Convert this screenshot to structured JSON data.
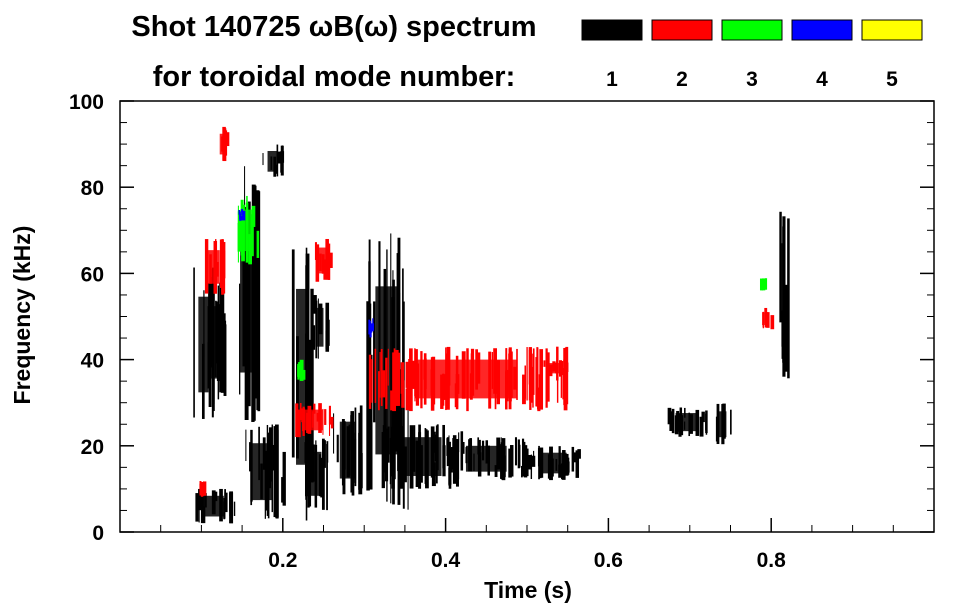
{
  "chart_data": {
    "type": "heatmap",
    "title_line1": "Shot 140725 ωB(ω) spectrum",
    "title_line2": "for toroidal mode number:",
    "xlabel": "Time (s)",
    "ylabel": "Frequency (kHz)",
    "xlim": [
      0.0,
      1.0
    ],
    "ylim": [
      0,
      100
    ],
    "x_ticks": [
      0.2,
      0.4,
      0.6,
      0.8
    ],
    "x_tick_labels": [
      "0.2",
      "0.4",
      "0.6",
      "0.8"
    ],
    "y_ticks": [
      0,
      20,
      40,
      60,
      80,
      100
    ],
    "y_tick_labels": [
      "0",
      "20",
      "40",
      "60",
      "80",
      "100"
    ],
    "grid": false,
    "legend_position": "top-right",
    "series": [
      {
        "name": "1",
        "color": "#000000",
        "regions": [
          {
            "t": [
              0.09,
              0.115
            ],
            "f": [
              25,
              62
            ]
          },
          {
            "t": [
              0.1,
              0.13
            ],
            "f": [
              30,
              58
            ]
          },
          {
            "t": [
              0.09,
              0.14
            ],
            "f": [
              2,
              10
            ]
          },
          {
            "t": [
              0.15,
              0.2
            ],
            "f": [
              3,
              25
            ]
          },
          {
            "t": [
              0.14,
              0.17
            ],
            "f": [
              25,
              85
            ]
          },
          {
            "t": [
              0.175,
              0.2
            ],
            "f": [
              82,
              90
            ]
          },
          {
            "t": [
              0.21,
              0.235
            ],
            "f": [
              2,
              70
            ]
          },
          {
            "t": [
              0.225,
              0.255
            ],
            "f": [
              5,
              22
            ]
          },
          {
            "t": [
              0.235,
              0.255
            ],
            "f": [
              40,
              55
            ]
          },
          {
            "t": [
              0.26,
              0.3
            ],
            "f": [
              8,
              30
            ]
          },
          {
            "t": [
              0.3,
              0.355
            ],
            "f": [
              5,
              70
            ]
          },
          {
            "t": [
              0.32,
              0.42
            ],
            "f": [
              10,
              25
            ]
          },
          {
            "t": [
              0.4,
              0.5
            ],
            "f": [
              12,
              22
            ]
          },
          {
            "t": [
              0.5,
              0.565
            ],
            "f": [
              12,
              20
            ]
          },
          {
            "t": [
              0.81,
              0.82
            ],
            "f": [
              35,
              75
            ]
          },
          {
            "t": [
              0.67,
              0.72
            ],
            "f": [
              22,
              29
            ]
          },
          {
            "t": [
              0.73,
              0.75
            ],
            "f": [
              20,
              30
            ]
          }
        ]
      },
      {
        "name": "2",
        "color": "#ff0000",
        "regions": [
          {
            "t": [
              0.12,
              0.13
            ],
            "f": [
              86,
              94
            ]
          },
          {
            "t": [
              0.1,
              0.13
            ],
            "f": [
              55,
              68
            ]
          },
          {
            "t": [
              0.235,
              0.26
            ],
            "f": [
              58,
              68
            ]
          },
          {
            "t": [
              0.215,
              0.26
            ],
            "f": [
              22,
              30
            ]
          },
          {
            "t": [
              0.3,
              0.55
            ],
            "f": [
              28,
              43
            ]
          },
          {
            "t": [
              0.52,
              0.55
            ],
            "f": [
              36,
              40
            ]
          },
          {
            "t": [
              0.095,
              0.105
            ],
            "f": [
              8,
              12
            ]
          },
          {
            "t": [
              0.785,
              0.8
            ],
            "f": [
              47,
              52
            ]
          }
        ]
      },
      {
        "name": "3",
        "color": "#00ff00",
        "regions": [
          {
            "t": [
              0.14,
              0.17
            ],
            "f": [
              62,
              78
            ]
          },
          {
            "t": [
              0.785,
              0.795
            ],
            "f": [
              56,
              59
            ]
          },
          {
            "t": [
              0.215,
              0.225
            ],
            "f": [
              35,
              40
            ]
          }
        ]
      },
      {
        "name": "4",
        "color": "#0000ff",
        "regions": [
          {
            "t": [
              0.145,
              0.15
            ],
            "f": [
              72,
              75
            ]
          },
          {
            "t": [
              0.305,
              0.31
            ],
            "f": [
              45,
              50
            ]
          }
        ]
      },
      {
        "name": "5",
        "color": "#ffff00",
        "regions": []
      }
    ]
  }
}
